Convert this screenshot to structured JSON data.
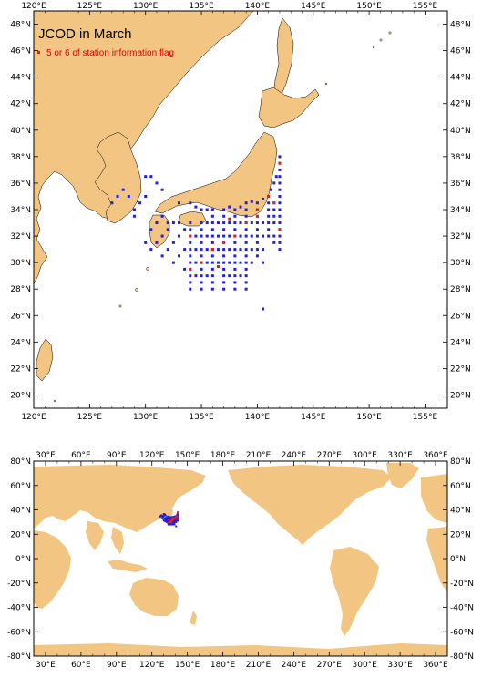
{
  "map_top": {
    "title": "JCOD in March",
    "legend_label": "5 or 6 of station information flag",
    "lon_labels": [
      "120°E",
      "125°E",
      "130°E",
      "135°E",
      "140°E",
      "145°E",
      "150°E",
      "155°E"
    ],
    "lat_labels": [
      "20°N",
      "22°N",
      "24°N",
      "26°N",
      "28°N",
      "30°N",
      "32°N",
      "34°N",
      "36°N",
      "38°N",
      "40°N",
      "42°N",
      "44°N",
      "46°N",
      "48°N"
    ],
    "lon_range": [
      120,
      157
    ],
    "lat_range": [
      19,
      49
    ],
    "land_color": "#f2c682",
    "normal_color": "#1f1fe6",
    "flag_color": "#e02020"
  },
  "map_bottom": {
    "lon_labels": [
      "30°E",
      "60°E",
      "90°E",
      "120°E",
      "150°E",
      "180°E",
      "210°E",
      "240°E",
      "270°E",
      "300°E",
      "330°E",
      "360°E"
    ],
    "lat_labels": [
      "80°N",
      "60°N",
      "40°N",
      "20°N",
      "0°N",
      "-20°N",
      "-40°N",
      "-60°N",
      "-80°N"
    ],
    "lon_range": [
      20,
      370
    ],
    "lat_range": [
      -80,
      80
    ]
  },
  "stations_normal": [
    [
      135,
      33
    ],
    [
      135,
      32.5
    ],
    [
      135,
      32
    ],
    [
      135,
      31.5
    ],
    [
      135,
      31
    ],
    [
      135,
      30.5
    ],
    [
      135,
      30
    ],
    [
      135,
      29.5
    ],
    [
      135,
      29
    ],
    [
      135,
      28.5
    ],
    [
      135,
      28
    ],
    [
      136,
      33.5
    ],
    [
      136,
      33
    ],
    [
      136,
      32.5
    ],
    [
      136,
      32
    ],
    [
      136,
      31.5
    ],
    [
      136,
      31
    ],
    [
      136,
      30.5
    ],
    [
      136,
      30
    ],
    [
      136,
      29.5
    ],
    [
      136,
      29
    ],
    [
      136,
      28.5
    ],
    [
      137,
      34
    ],
    [
      137,
      33.5
    ],
    [
      137,
      33
    ],
    [
      137,
      32.5
    ],
    [
      137,
      32
    ],
    [
      137,
      31.5
    ],
    [
      137,
      31
    ],
    [
      137,
      30.5
    ],
    [
      137,
      30
    ],
    [
      137,
      29.5
    ],
    [
      137,
      29
    ],
    [
      137,
      28.5
    ],
    [
      137,
      28
    ],
    [
      138,
      34
    ],
    [
      138,
      33.5
    ],
    [
      138,
      33
    ],
    [
      138,
      32.5
    ],
    [
      138,
      32
    ],
    [
      138,
      31.5
    ],
    [
      138,
      31
    ],
    [
      138,
      30.5
    ],
    [
      138,
      30
    ],
    [
      138,
      29.5
    ],
    [
      138,
      29
    ],
    [
      138,
      28.5
    ],
    [
      139,
      34.5
    ],
    [
      139,
      34
    ],
    [
      139,
      33.5
    ],
    [
      139,
      33
    ],
    [
      139,
      32.5
    ],
    [
      139,
      32
    ],
    [
      139,
      31.5
    ],
    [
      139,
      31
    ],
    [
      139,
      30.5
    ],
    [
      139,
      30
    ],
    [
      139,
      29.5
    ],
    [
      139,
      29
    ],
    [
      139,
      28.5
    ],
    [
      140,
      34.5
    ],
    [
      140,
      34
    ],
    [
      140,
      33.5
    ],
    [
      140,
      33
    ],
    [
      140,
      32.5
    ],
    [
      140,
      32
    ],
    [
      140,
      31.5
    ],
    [
      140,
      31
    ],
    [
      140,
      30.5
    ],
    [
      141,
      35
    ],
    [
      141,
      34.5
    ],
    [
      141,
      34
    ],
    [
      141,
      33.5
    ],
    [
      141,
      33
    ],
    [
      141,
      32.5
    ],
    [
      141,
      32
    ],
    [
      141.5,
      34.5
    ],
    [
      141.5,
      34
    ],
    [
      141.5,
      33.5
    ],
    [
      141.5,
      33
    ],
    [
      141.5,
      32
    ],
    [
      141.5,
      31.5
    ],
    [
      142,
      38
    ],
    [
      142,
      37.5
    ],
    [
      142,
      37
    ],
    [
      142,
      36.5
    ],
    [
      142,
      36
    ],
    [
      142,
      35.5
    ],
    [
      142,
      35
    ],
    [
      142,
      34.5
    ],
    [
      142,
      34
    ],
    [
      142,
      33.5
    ],
    [
      142,
      33
    ],
    [
      142,
      32.5
    ],
    [
      142,
      32
    ],
    [
      142,
      31.5
    ],
    [
      142,
      31
    ],
    [
      141.2,
      35.5
    ],
    [
      141.5,
      36
    ],
    [
      141.7,
      36.5
    ],
    [
      134,
      33
    ],
    [
      134,
      32.5
    ],
    [
      134,
      32
    ],
    [
      134,
      31.5
    ],
    [
      134,
      31
    ],
    [
      134,
      30.5
    ],
    [
      134,
      30
    ],
    [
      134,
      29.5
    ],
    [
      134,
      29
    ],
    [
      134,
      28.5
    ],
    [
      134,
      28
    ],
    [
      133.5,
      32.5
    ],
    [
      133,
      33
    ],
    [
      132.5,
      33
    ],
    [
      132,
      32.5
    ],
    [
      131.5,
      32
    ],
    [
      131,
      31.5
    ],
    [
      130.5,
      31
    ],
    [
      130,
      31.5
    ],
    [
      131,
      33
    ],
    [
      131.5,
      33.5
    ],
    [
      132,
      33
    ],
    [
      130.5,
      32.5
    ],
    [
      130,
      36.5
    ],
    [
      130.5,
      36.5
    ],
    [
      131,
      36
    ],
    [
      131.5,
      35.5
    ],
    [
      130,
      35
    ],
    [
      129.5,
      34.5
    ],
    [
      129,
      34
    ],
    [
      128.5,
      35
    ],
    [
      128,
      35.5
    ],
    [
      127.5,
      35
    ],
    [
      127,
      34.5
    ],
    [
      129,
      33.5
    ],
    [
      133,
      34.5
    ],
    [
      134,
      34.5
    ],
    [
      135.5,
      34
    ],
    [
      136,
      34
    ],
    [
      135,
      34
    ],
    [
      134.5,
      34.2
    ],
    [
      137.5,
      34.2
    ],
    [
      138.5,
      34.2
    ],
    [
      139.5,
      34.6
    ],
    [
      140.5,
      34.8
    ],
    [
      136.5,
      33
    ],
    [
      136.5,
      32
    ],
    [
      136.5,
      31
    ],
    [
      136.5,
      30
    ],
    [
      137.5,
      33
    ],
    [
      137.5,
      32
    ],
    [
      137.5,
      31
    ],
    [
      137.5,
      30
    ],
    [
      137.5,
      29
    ],
    [
      138.5,
      33
    ],
    [
      138.5,
      32
    ],
    [
      138.5,
      31
    ],
    [
      138.5,
      30
    ],
    [
      138.5,
      29
    ],
    [
      139.5,
      33
    ],
    [
      139.5,
      32
    ],
    [
      139.5,
      31
    ],
    [
      139.5,
      30
    ],
    [
      135.5,
      33
    ],
    [
      135.5,
      32
    ],
    [
      135.5,
      31
    ],
    [
      135.5,
      30
    ],
    [
      135.5,
      29
    ],
    [
      134.5,
      32
    ],
    [
      134.5,
      31
    ],
    [
      134.5,
      30
    ],
    [
      134.5,
      29
    ],
    [
      140.5,
      33
    ],
    [
      140.5,
      32
    ],
    [
      140.5,
      31
    ],
    [
      140.5,
      30
    ],
    [
      139,
      28
    ],
    [
      138,
      28
    ],
    [
      136,
      28
    ],
    [
      140.5,
      26.5
    ],
    [
      133,
      32
    ],
    [
      132.5,
      31.5
    ],
    [
      133.5,
      31
    ],
    [
      133,
      30.5
    ],
    [
      132,
      31
    ],
    [
      131.5,
      30.5
    ],
    [
      132.5,
      30
    ],
    [
      133.5,
      29.5
    ]
  ],
  "stations_flag": [
    [
      142,
      37.5
    ],
    [
      141.5,
      34.5
    ],
    [
      141,
      35
    ],
    [
      140,
      33.5
    ],
    [
      139,
      33
    ],
    [
      138,
      32
    ],
    [
      137,
      31.5
    ],
    [
      136,
      31
    ],
    [
      135,
      30
    ],
    [
      134,
      29.5
    ],
    [
      136.5,
      29.7
    ],
    [
      142,
      32.5
    ],
    [
      140,
      34
    ],
    [
      137.5,
      33.3
    ],
    [
      134,
      32
    ]
  ]
}
